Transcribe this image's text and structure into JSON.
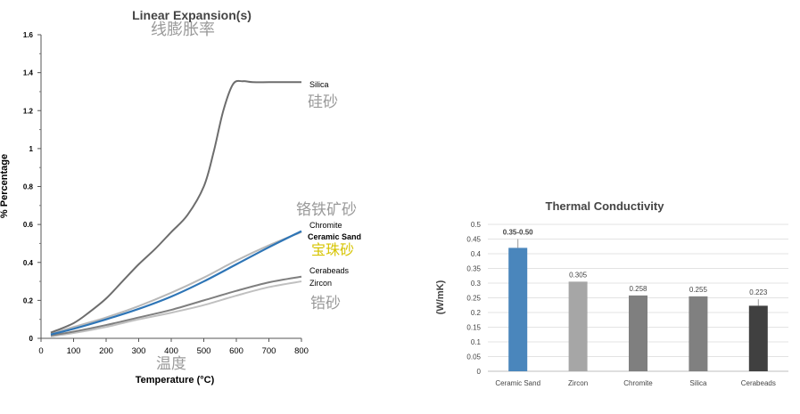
{
  "chart_data": [
    {
      "type": "line",
      "title": "Linear Expansion(s)",
      "title_cn": "线膨胀率",
      "xlabel": "Temperature (°C)",
      "xlabel_cn": "温度",
      "ylabel": "% Percentage",
      "xlim": [
        0,
        800
      ],
      "ylim": [
        0,
        1.6
      ],
      "x_ticks": [
        "0",
        "100",
        "200",
        "300",
        "400",
        "500",
        "600",
        "700",
        "800"
      ],
      "y_ticks": [
        "0",
        "0.2",
        "0.4",
        "0.6",
        "0.8",
        "1",
        "1.2",
        "1.4",
        "1.6"
      ],
      "grid": false,
      "series": [
        {
          "name": "Silica",
          "name_cn": "硅砂",
          "color": "#6d6d6d",
          "label_bold": false,
          "x": [
            30,
            100,
            150,
            200,
            250,
            300,
            350,
            400,
            450,
            500,
            530,
            560,
            590,
            620,
            650,
            700,
            750,
            800
          ],
          "y": [
            0.03,
            0.08,
            0.14,
            0.21,
            0.3,
            0.39,
            0.47,
            0.56,
            0.65,
            0.8,
            0.98,
            1.2,
            1.34,
            1.355,
            1.35,
            1.35,
            1.35,
            1.35
          ]
        },
        {
          "name": "Chromite",
          "name_cn": "铬铁矿砂",
          "color": "#b8b8b8",
          "label_bold": false,
          "x": [
            30,
            100,
            200,
            300,
            400,
            500,
            600,
            700,
            800
          ],
          "y": [
            0.025,
            0.06,
            0.11,
            0.17,
            0.24,
            0.32,
            0.41,
            0.49,
            0.56
          ]
        },
        {
          "name": "Ceramic Sand",
          "name_cn": "宝珠砂",
          "color": "#2e75b6",
          "label_bold": true,
          "x": [
            30,
            100,
            200,
            300,
            400,
            500,
            600,
            700,
            800
          ],
          "y": [
            0.02,
            0.05,
            0.1,
            0.155,
            0.22,
            0.3,
            0.39,
            0.48,
            0.565
          ]
        },
        {
          "name": "Cerabeads",
          "name_cn": "",
          "color": "#7f7f7f",
          "label_bold": false,
          "x": [
            30,
            100,
            200,
            300,
            400,
            500,
            600,
            700,
            800
          ],
          "y": [
            0.015,
            0.035,
            0.07,
            0.11,
            0.15,
            0.2,
            0.25,
            0.295,
            0.325
          ]
        },
        {
          "name": "Zircon",
          "name_cn": "锆砂",
          "color": "#c0c0c0",
          "label_bold": false,
          "x": [
            30,
            100,
            200,
            300,
            400,
            500,
            600,
            700,
            800
          ],
          "y": [
            0.01,
            0.028,
            0.06,
            0.1,
            0.135,
            0.175,
            0.225,
            0.27,
            0.3
          ]
        }
      ]
    },
    {
      "type": "bar",
      "title": "Thermal Conductivity",
      "ylabel": "(W/mK)",
      "ylim": [
        0,
        0.5
      ],
      "y_ticks": [
        "0",
        "0.05",
        "0.1",
        "0.15",
        "0.2",
        "0.25",
        "0.3",
        "0.35",
        "0.4",
        "0.45",
        "0.5"
      ],
      "grid": true,
      "categories": [
        "Ceramic Sand",
        "Zircon",
        "Chromite",
        "Silica",
        "Cerabeads"
      ],
      "values": [
        0.42,
        0.305,
        0.258,
        0.255,
        0.223
      ],
      "error_upper": [
        0.45,
        null,
        null,
        null,
        0.245
      ],
      "data_labels": [
        "0.35-0.50",
        "0.305",
        "0.258",
        "0.255",
        "0.223"
      ],
      "colors": [
        "#4a86bc",
        "#a6a6a6",
        "#7f7f7f",
        "#808080",
        "#404040"
      ]
    }
  ]
}
